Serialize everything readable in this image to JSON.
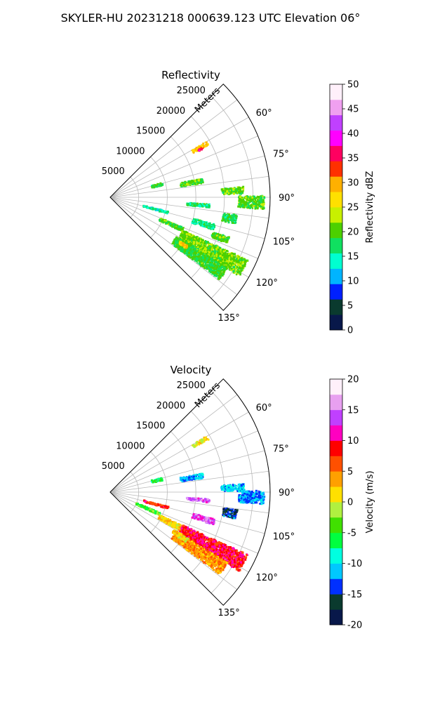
{
  "figure_title": "SKYLER-HU  20231218  000639.123 UTC Elevation 06°",
  "chart_data": [
    {
      "type": "heatmap",
      "subtype": "polar-ppi",
      "title": "Reflectivity",
      "range_label": "Meters",
      "range_ticks": [
        5000,
        10000,
        15000,
        20000,
        25000
      ],
      "range_max": 28000,
      "azimuth_ticks": [
        "60°",
        "75°",
        "90°",
        "105°",
        "120°",
        "135°"
      ],
      "azimuth_tick_values": [
        60,
        75,
        90,
        105,
        120,
        135
      ],
      "azimuth_range": [
        45,
        135
      ],
      "azimuth_grid_step": 7.5,
      "grid": true,
      "colorbar": {
        "label": "Reflectivity dBZ",
        "min": 0,
        "max": 50,
        "ticks": [
          "0",
          "5",
          "10",
          "15",
          "20",
          "25",
          "30",
          "35",
          "40",
          "45",
          "50"
        ],
        "colors": [
          "#08184a",
          "#0a3a2e",
          "#0020ff",
          "#00b4ff",
          "#00ffd0",
          "#10e060",
          "#4cd000",
          "#c8f000",
          "#ffe000",
          "#ffb000",
          "#ff3000",
          "#ff0060",
          "#ff00ff",
          "#c040ff",
          "#f0a0f0",
          "#fff0fa"
        ]
      },
      "echoes": [
        {
          "az": 61,
          "r": [
            16500,
            19500
          ],
          "daz": 2,
          "value": 28
        },
        {
          "az": 62,
          "r": [
            17500,
            18500
          ],
          "daz": 1,
          "value": 35
        },
        {
          "az": 76,
          "r": [
            7500,
            9500
          ],
          "daz": 3,
          "value": 18
        },
        {
          "az": 80,
          "r": [
            12500,
            16500
          ],
          "daz": 3,
          "value": 20
        },
        {
          "az": 87,
          "r": [
            19500,
            23500
          ],
          "daz": 3,
          "value": 20
        },
        {
          "az": 92,
          "r": [
            22500,
            27000
          ],
          "daz": 5,
          "value": 20
        },
        {
          "az": 95,
          "r": [
            13500,
            17500
          ],
          "daz": 2,
          "value": 17
        },
        {
          "az": 100,
          "r": [
            20000,
            22500
          ],
          "daz": 4,
          "value": 18
        },
        {
          "az": 105,
          "r": [
            6000,
            10500
          ],
          "daz": 2,
          "value": 15
        },
        {
          "az": 106,
          "r": [
            15000,
            19000
          ],
          "daz": 3,
          "value": 16
        },
        {
          "az": 110,
          "r": [
            19000,
            22000
          ],
          "daz": 3,
          "value": 20
        },
        {
          "az": 114,
          "r": [
            9500,
            14000
          ],
          "daz": 3,
          "value": 20
        },
        {
          "az": 118,
          "r": [
            14000,
            26500
          ],
          "daz": 7,
          "value": 21
        },
        {
          "az": 124,
          "r": [
            13500,
            24000
          ],
          "daz": 6,
          "value": 19
        },
        {
          "az": 123,
          "r": [
            14500,
            16000
          ],
          "daz": 2,
          "value": 28
        }
      ]
    },
    {
      "type": "heatmap",
      "subtype": "polar-ppi",
      "title": "Velocity",
      "range_label": "Meters",
      "range_ticks": [
        5000,
        10000,
        15000,
        20000,
        25000
      ],
      "range_max": 28000,
      "azimuth_ticks": [
        "60°",
        "75°",
        "90°",
        "105°",
        "120°",
        "135°"
      ],
      "azimuth_tick_values": [
        60,
        75,
        90,
        105,
        120,
        135
      ],
      "azimuth_range": [
        45,
        135
      ],
      "azimuth_grid_step": 7.5,
      "grid": true,
      "colorbar": {
        "label": "Velocity (m/s)",
        "min": -20,
        "max": 20,
        "ticks": [
          "-20",
          "-15",
          "-10",
          "-5",
          "0",
          "5",
          "10",
          "15",
          "20"
        ],
        "colors": [
          "#08184a",
          "#0a3a2e",
          "#0030ff",
          "#00c8ff",
          "#00ffe0",
          "#00ff40",
          "#40e000",
          "#b0f040",
          "#ffe000",
          "#ffa000",
          "#ff5000",
          "#ff0000",
          "#ff00c0",
          "#c040ff",
          "#e8a0f0",
          "#fff0fa"
        ]
      },
      "echoes": [
        {
          "az": 61,
          "r": [
            16500,
            19500
          ],
          "daz": 2,
          "value": 1
        },
        {
          "az": 76,
          "r": [
            7500,
            9500
          ],
          "daz": 3,
          "value": -6
        },
        {
          "az": 80,
          "r": [
            12500,
            16500
          ],
          "daz": 3,
          "value": -12
        },
        {
          "az": 88,
          "r": [
            19500,
            23500
          ],
          "daz": 3,
          "value": -11
        },
        {
          "az": 92,
          "r": [
            22500,
            27000
          ],
          "daz": 5,
          "value": -12
        },
        {
          "az": 95,
          "r": [
            13500,
            17500
          ],
          "daz": 2,
          "value": 15
        },
        {
          "az": 100,
          "r": [
            20000,
            22500
          ],
          "daz": 4,
          "value": -15
        },
        {
          "az": 105,
          "r": [
            6000,
            10500
          ],
          "daz": 2,
          "value": 8
        },
        {
          "az": 106,
          "r": [
            15000,
            19000
          ],
          "daz": 3,
          "value": 14
        },
        {
          "az": 114,
          "r": [
            5000,
            9500
          ],
          "daz": 3,
          "value": -4
        },
        {
          "az": 117,
          "r": [
            9500,
            14000
          ],
          "daz": 4,
          "value": 2
        },
        {
          "az": 118,
          "r": [
            14000,
            26500
          ],
          "daz": 7,
          "value": 9
        },
        {
          "az": 124,
          "r": [
            13500,
            24000
          ],
          "daz": 6,
          "value": 4
        },
        {
          "az": 122,
          "r": [
            13000,
            16000
          ],
          "daz": 3,
          "value": 2
        }
      ]
    }
  ]
}
